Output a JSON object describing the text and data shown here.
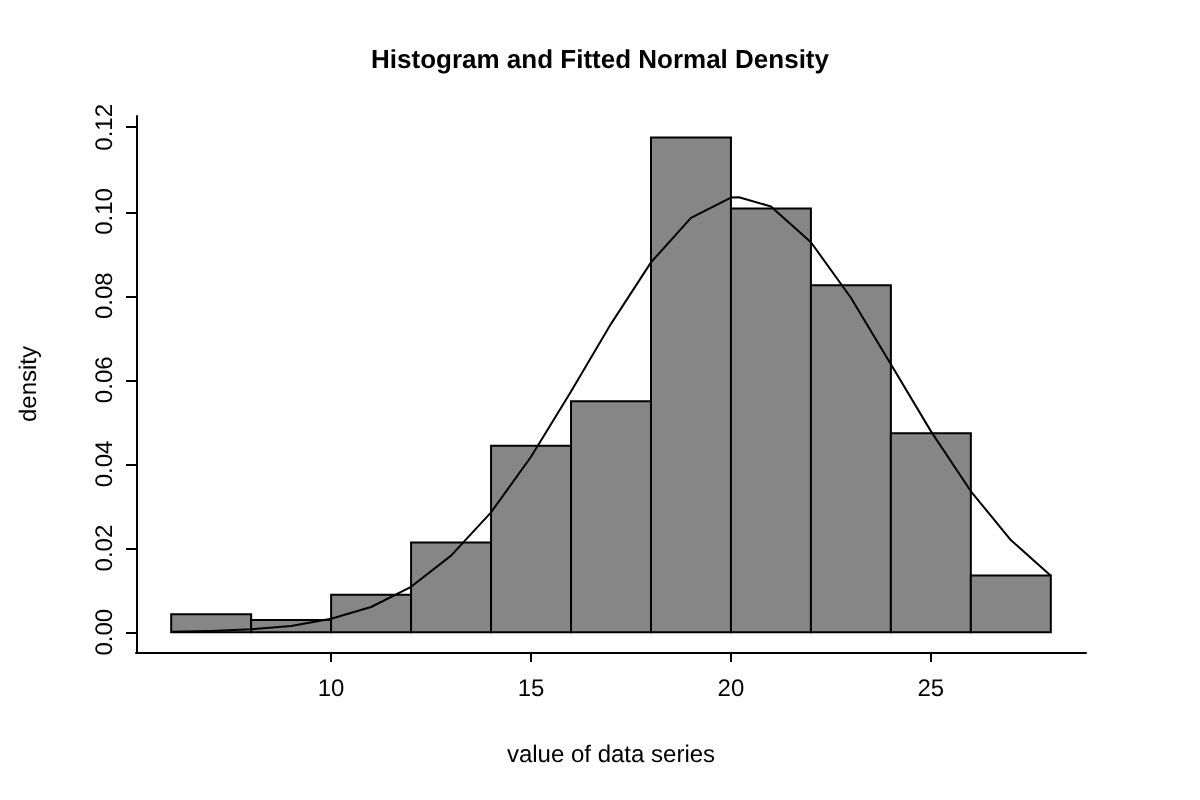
{
  "chart_data": {
    "type": "histogram",
    "title": "Histogram and Fitted Normal Density",
    "xlabel": "value of data series",
    "ylabel": "density",
    "bins": [
      6,
      8,
      10,
      12,
      14,
      16,
      18,
      20,
      22,
      24,
      26,
      28
    ],
    "values": [
      0.0043,
      0.0029,
      0.0089,
      0.0213,
      0.0443,
      0.0549,
      0.1176,
      0.1007,
      0.0825,
      0.0473,
      0.0135
    ],
    "color": "#868686",
    "series": [
      {
        "type": "line",
        "color": "#000000",
        "x": [
          6,
          7,
          8,
          9,
          10,
          11,
          12,
          13,
          14,
          15,
          16,
          17,
          18,
          19,
          20,
          20.2,
          21,
          22,
          23,
          24,
          25,
          26,
          27,
          28
        ],
        "values": [
          0.0001,
          0.0003,
          0.0007,
          0.0015,
          0.0032,
          0.006,
          0.0108,
          0.0182,
          0.0285,
          0.0417,
          0.0572,
          0.0733,
          0.0879,
          0.0985,
          0.1033,
          0.1034,
          0.1012,
          0.0927,
          0.0795,
          0.0637,
          0.0478,
          0.0335,
          0.0219,
          0.0134
        ]
      }
    ],
    "xlim": [
      5.12,
      28.88
    ],
    "xticks": [
      10,
      15,
      20,
      25
    ],
    "ylim": [
      -0.0047,
      0.1227
    ],
    "yticks": [
      {
        "value": 0,
        "label": "0.00"
      },
      {
        "value": 0.02,
        "label": "0.02"
      },
      {
        "value": 0.04,
        "label": "0.04"
      },
      {
        "value": 0.06,
        "label": "0.06"
      },
      {
        "value": 0.08,
        "label": "0.08"
      },
      {
        "value": 0.1,
        "label": "0.10"
      },
      {
        "value": 0.12,
        "label": "0.12"
      }
    ],
    "grid": false,
    "marker": "none",
    "line_style": "solid"
  }
}
